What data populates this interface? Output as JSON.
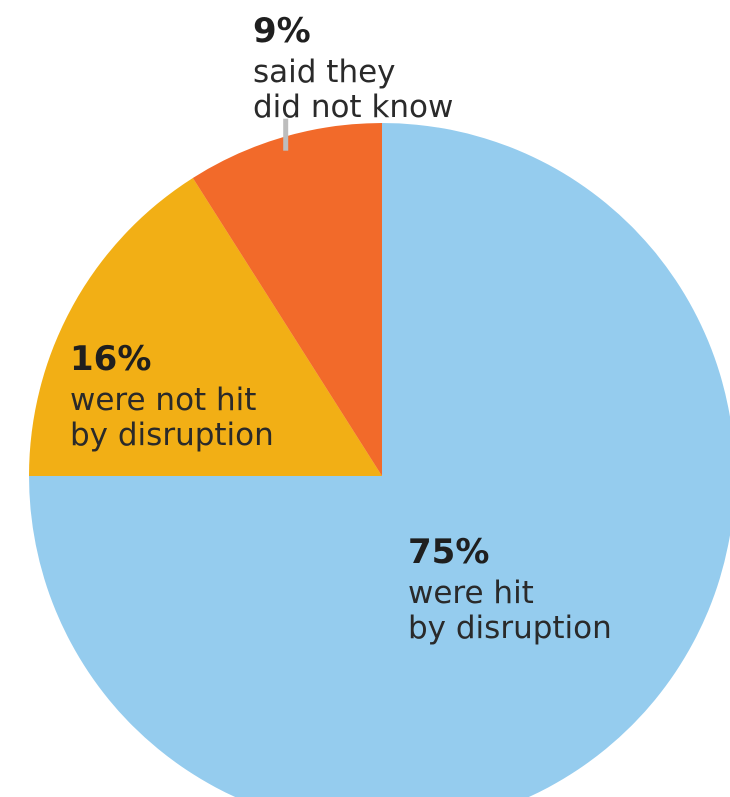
{
  "chart_data": {
    "type": "pie",
    "title": "",
    "start_angle_deg": 0,
    "direction": "clockwise",
    "slices": [
      {
        "value": 75,
        "value_label": "75%",
        "label_lines": [
          "were hit",
          "by disruption"
        ],
        "color": "#95CCEE"
      },
      {
        "value": 16,
        "value_label": "16%",
        "label_lines": [
          "were not hit",
          "by disruption"
        ],
        "color": "#F2AF15"
      },
      {
        "value": 9,
        "value_label": "9%",
        "label_lines": [
          "said they",
          "did not know"
        ],
        "color": "#F26A2A"
      }
    ]
  }
}
